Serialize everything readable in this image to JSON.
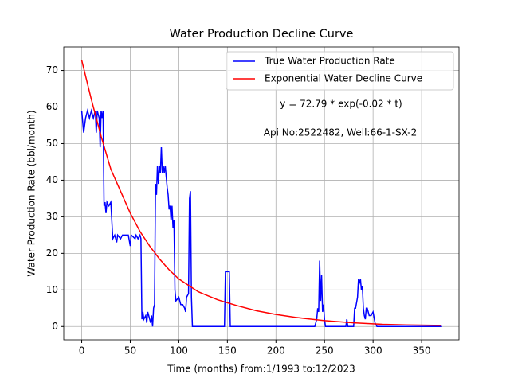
{
  "chart_data": {
    "type": "line",
    "title": "Water Production Decline Curve",
    "x_label": "Time (months) from:1/1993 to:12/2023",
    "y_label": "Water Production Rate (bbl/month)",
    "annotations": [
      "y = 72.79 * exp(-0.02 * t)",
      "Api No:2522482, Well:66-1-SX-2"
    ],
    "xlim": [
      -18.5,
      388.5
    ],
    "ylim": [
      -3.64,
      76.43
    ],
    "xticks": [
      0,
      50,
      100,
      150,
      200,
      250,
      300,
      350
    ],
    "yticks": [
      0,
      10,
      20,
      30,
      40,
      50,
      60,
      70
    ],
    "grid": true,
    "legend": "upper right",
    "series": [
      {
        "name": "True Water Production Rate",
        "color": "#0000ff",
        "x": [
          0,
          2,
          4,
          6,
          8,
          10,
          12,
          14,
          15,
          16,
          18,
          19,
          20,
          21,
          22,
          23,
          24,
          25,
          26,
          28,
          30,
          32,
          34,
          36,
          37,
          40,
          42,
          48,
          50,
          51,
          55,
          56,
          58,
          60,
          61,
          62,
          63,
          64,
          66,
          67,
          68,
          70,
          71,
          72,
          73,
          74,
          75,
          76,
          77,
          78,
          79,
          80,
          81,
          82,
          83,
          84,
          85,
          86,
          88,
          89,
          90,
          91,
          92,
          93,
          94,
          95,
          96,
          97,
          100,
          102,
          104,
          106,
          107,
          108,
          110,
          111,
          112,
          113,
          114,
          147,
          148,
          152,
          153,
          240,
          242,
          243,
          244,
          245,
          246,
          247,
          248,
          249,
          250,
          251,
          272,
          273,
          274,
          280,
          281,
          282,
          284,
          285,
          286,
          287,
          288,
          289,
          290,
          291,
          292,
          293,
          294,
          296,
          298,
          300,
          302,
          304,
          371
        ],
        "values": [
          59,
          53,
          57,
          59,
          57,
          59,
          57,
          59,
          53,
          59,
          57,
          49,
          59,
          57,
          59,
          33,
          34,
          31,
          34,
          33,
          34,
          24,
          25,
          23,
          25,
          24,
          25,
          25,
          22,
          25,
          24,
          25,
          24,
          25,
          24,
          2,
          4,
          2,
          3,
          1,
          4,
          2,
          1,
          3,
          0,
          5,
          6,
          39,
          36,
          44,
          39,
          44,
          42,
          49,
          42,
          44,
          42,
          44,
          38,
          36,
          32,
          33,
          29,
          33,
          27,
          29,
          10,
          7,
          8,
          6,
          6,
          5,
          4,
          8,
          9,
          35,
          37,
          8,
          0,
          0,
          15,
          15,
          0,
          0,
          2,
          5,
          4,
          18,
          7,
          14,
          4,
          6,
          2,
          0,
          0,
          2,
          0,
          0,
          5,
          5,
          8,
          13,
          12,
          13,
          10,
          11,
          5,
          3,
          2,
          5,
          5,
          3,
          3,
          4,
          1,
          0,
          0
        ]
      },
      {
        "name": "Exponential Water Decline Curve",
        "color": "#ff0000",
        "x": [
          0,
          10,
          20,
          30,
          40,
          50,
          60,
          70,
          80,
          90,
          100,
          120,
          140,
          160,
          180,
          200,
          220,
          250,
          280,
          310,
          340,
          370
        ],
        "values": [
          72.79,
          62,
          52,
          43,
          37,
          31,
          26,
          22,
          18.5,
          15.5,
          13,
          9.5,
          7.3,
          5.7,
          4.3,
          3.3,
          2.5,
          1.6,
          1,
          0.6,
          0.4,
          0.3
        ]
      }
    ]
  }
}
